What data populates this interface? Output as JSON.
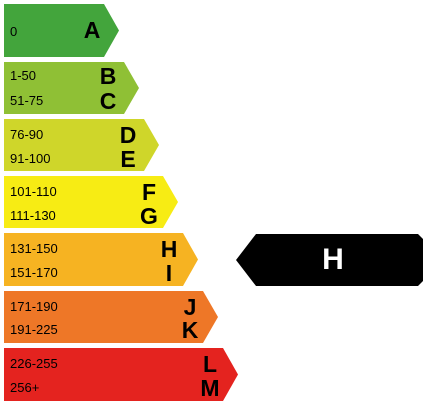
{
  "bands": [
    {
      "color": "#43a53c",
      "rows": [
        {
          "range": "0",
          "letter": "A"
        }
      ]
    },
    {
      "color": "#8fc035",
      "rows": [
        {
          "range": "1-50",
          "letter": "B"
        },
        {
          "range": "51-75",
          "letter": "C"
        }
      ]
    },
    {
      "color": "#cfd62a",
      "rows": [
        {
          "range": "76-90",
          "letter": "D"
        },
        {
          "range": "91-100",
          "letter": "E"
        }
      ]
    },
    {
      "color": "#f7ec14",
      "rows": [
        {
          "range": "101-110",
          "letter": "F"
        },
        {
          "range": "111-130",
          "letter": "G"
        }
      ]
    },
    {
      "color": "#f6b322",
      "rows": [
        {
          "range": "131-150",
          "letter": "H"
        },
        {
          "range": "151-170",
          "letter": "I"
        }
      ]
    },
    {
      "color": "#ee7727",
      "rows": [
        {
          "range": "171-190",
          "letter": "J"
        },
        {
          "range": "191-225",
          "letter": "K"
        }
      ]
    },
    {
      "color": "#e4231f",
      "rows": [
        {
          "range": "226-255",
          "letter": "L"
        },
        {
          "range": "256+",
          "letter": "M"
        }
      ]
    }
  ],
  "rating": {
    "letter": "H",
    "color": "#000000"
  }
}
